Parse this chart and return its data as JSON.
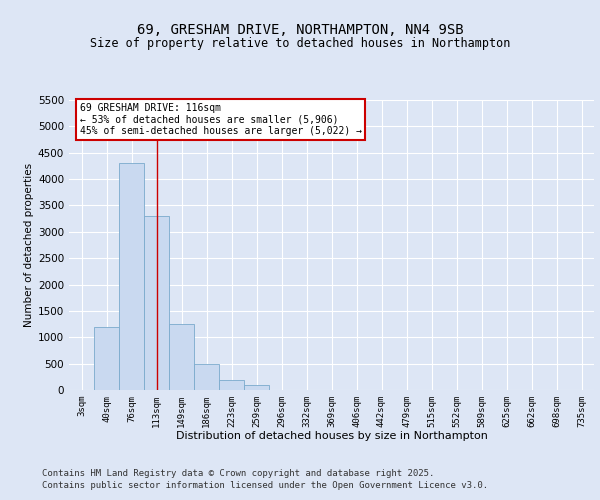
{
  "title1": "69, GRESHAM DRIVE, NORTHAMPTON, NN4 9SB",
  "title2": "Size of property relative to detached houses in Northampton",
  "xlabel": "Distribution of detached houses by size in Northampton",
  "ylabel": "Number of detached properties",
  "categories": [
    "3sqm",
    "40sqm",
    "76sqm",
    "113sqm",
    "149sqm",
    "186sqm",
    "223sqm",
    "259sqm",
    "296sqm",
    "332sqm",
    "369sqm",
    "406sqm",
    "442sqm",
    "479sqm",
    "515sqm",
    "552sqm",
    "589sqm",
    "625sqm",
    "662sqm",
    "698sqm",
    "735sqm"
  ],
  "values": [
    0,
    1200,
    4300,
    3300,
    1250,
    500,
    190,
    100,
    0,
    0,
    0,
    0,
    0,
    0,
    0,
    0,
    0,
    0,
    0,
    0,
    0
  ],
  "bar_color": "#c9d9f0",
  "bar_edge_color": "#7aaacc",
  "vline_x": 3,
  "vline_color": "#cc0000",
  "annotation_text": "69 GRESHAM DRIVE: 116sqm\n← 53% of detached houses are smaller (5,906)\n45% of semi-detached houses are larger (5,022) →",
  "annotation_box_color": "#ffffff",
  "annotation_edge_color": "#cc0000",
  "ylim": [
    0,
    5500
  ],
  "yticks": [
    0,
    500,
    1000,
    1500,
    2000,
    2500,
    3000,
    3500,
    4000,
    4500,
    5000,
    5500
  ],
  "bg_color": "#dde6f5",
  "plot_bg_color": "#dde6f5",
  "footer1": "Contains HM Land Registry data © Crown copyright and database right 2025.",
  "footer2": "Contains public sector information licensed under the Open Government Licence v3.0.",
  "title1_fontsize": 10,
  "title2_fontsize": 8.5,
  "annotation_fontsize": 7,
  "footer_fontsize": 6.5
}
